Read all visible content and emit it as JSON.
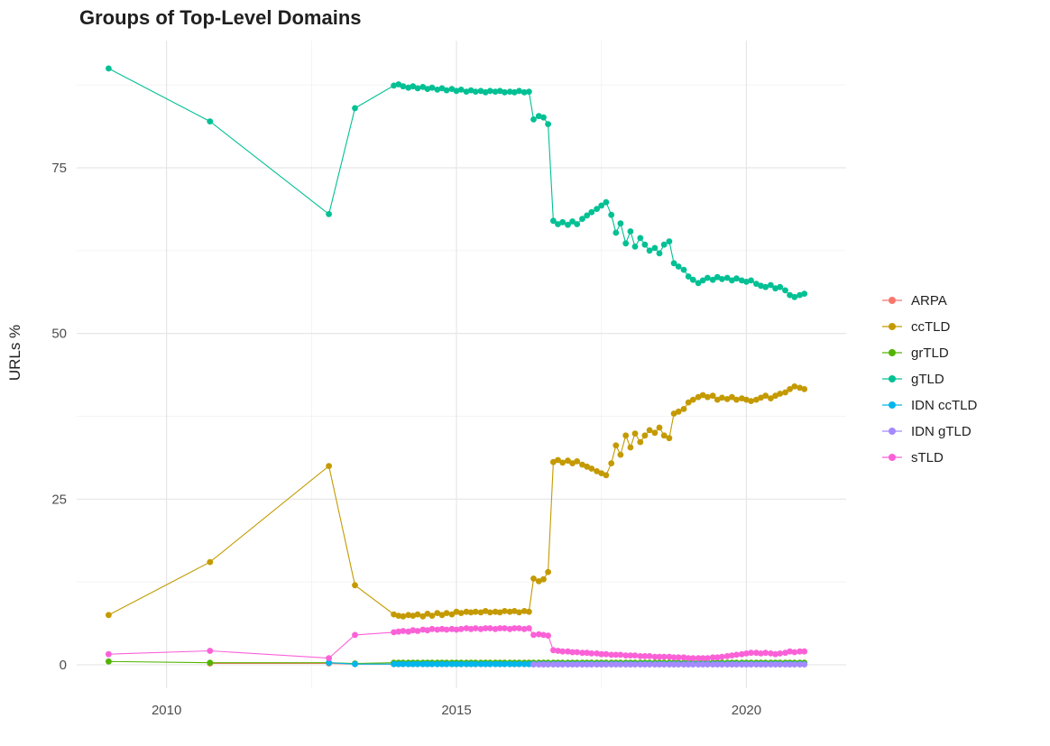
{
  "page": {
    "background": "#ffffff"
  },
  "chart_data": {
    "type": "line",
    "title": "Groups of Top-Level Domains",
    "xlabel": "",
    "ylabel": "URLs %",
    "grid": true,
    "legend_position": "right",
    "xlim": [
      2008.45,
      2021.72
    ],
    "ylim": [
      -3.55,
      94.2
    ],
    "x_ticks": {
      "major": [
        2010,
        2015,
        2020
      ],
      "minor": [
        2012.5,
        2017.5
      ],
      "labels": [
        "2010",
        "2015",
        "2020"
      ]
    },
    "y_ticks": {
      "major": [
        0,
        25,
        50,
        75
      ],
      "minor": [
        12.5,
        37.5,
        62.5,
        87.5
      ],
      "labels": [
        "0",
        "25",
        "50",
        "75"
      ]
    },
    "x": [
      2009,
      2010.75,
      2012.8,
      2013.25,
      2013.92,
      2014.0,
      2014.08,
      2014.17,
      2014.25,
      2014.33,
      2014.42,
      2014.5,
      2014.58,
      2014.67,
      2014.75,
      2014.83,
      2014.92,
      2015.0,
      2015.08,
      2015.17,
      2015.25,
      2015.33,
      2015.42,
      2015.5,
      2015.58,
      2015.67,
      2015.75,
      2015.83,
      2015.92,
      2016.0,
      2016.08,
      2016.17,
      2016.25,
      2016.33,
      2016.42,
      2016.5,
      2016.58,
      2016.67,
      2016.75,
      2016.83,
      2016.92,
      2017.0,
      2017.08,
      2017.17,
      2017.25,
      2017.33,
      2017.42,
      2017.5,
      2017.58,
      2017.67,
      2017.75,
      2017.83,
      2017.92,
      2018.0,
      2018.08,
      2018.17,
      2018.25,
      2018.33,
      2018.42,
      2018.5,
      2018.58,
      2018.67,
      2018.75,
      2018.83,
      2018.92,
      2019.0,
      2019.08,
      2019.17,
      2019.25,
      2019.33,
      2019.42,
      2019.5,
      2019.58,
      2019.67,
      2019.75,
      2019.83,
      2019.92,
      2020.0,
      2020.08,
      2020.17,
      2020.25,
      2020.33,
      2020.42,
      2020.5,
      2020.58,
      2020.67,
      2020.75,
      2020.83,
      2020.92,
      2021.0
    ],
    "series": [
      {
        "name": "ARPA",
        "color": "#F8766D",
        "values": [
          null,
          0.2,
          0.2,
          0.1,
          {
            "r": 86,
            "v": 0.1
          }
        ]
      },
      {
        "name": "ccTLD",
        "color": "#C49A00",
        "values": [
          7.5,
          15.5,
          30.0,
          12.0,
          7.6,
          7.4,
          7.3,
          7.5,
          7.4,
          7.6,
          7.3,
          7.7,
          7.4,
          7.8,
          7.5,
          7.8,
          7.6,
          8.0,
          7.8,
          8.0,
          7.9,
          8.0,
          7.9,
          8.1,
          7.9,
          8.0,
          7.9,
          8.1,
          8.0,
          8.1,
          7.9,
          8.1,
          8.0,
          13.0,
          12.6,
          12.9,
          14.0,
          30.6,
          30.9,
          30.5,
          30.8,
          30.4,
          30.7,
          30.2,
          29.9,
          29.6,
          29.2,
          28.9,
          28.6,
          30.4,
          33.1,
          31.7,
          34.6,
          32.8,
          34.9,
          33.6,
          34.6,
          35.4,
          35.0,
          35.8,
          34.6,
          34.2,
          37.9,
          38.2,
          38.6,
          39.6,
          40.0,
          40.4,
          40.7,
          40.4,
          40.6,
          40.0,
          40.3,
          40.1,
          40.4,
          40.0,
          40.2,
          40.0,
          39.8,
          40.0,
          40.3,
          40.6,
          40.2,
          40.6,
          40.9,
          41.1,
          41.6,
          42.0,
          41.8,
          41.6
        ]
      },
      {
        "name": "grTLD",
        "color": "#53B400",
        "values": [
          0.5,
          0.3,
          0.3,
          0.2,
          {
            "r": 86,
            "v": 0.3
          }
        ]
      },
      {
        "name": "gTLD",
        "color": "#00C094",
        "values": [
          90.0,
          82.0,
          68.0,
          84.0,
          87.4,
          87.6,
          87.3,
          87.1,
          87.3,
          87.0,
          87.2,
          86.9,
          87.1,
          86.8,
          87.0,
          86.7,
          86.9,
          86.6,
          86.8,
          86.5,
          86.7,
          86.5,
          86.6,
          86.4,
          86.6,
          86.5,
          86.6,
          86.4,
          86.5,
          86.4,
          86.6,
          86.4,
          86.5,
          82.3,
          82.8,
          82.6,
          81.6,
          67.0,
          66.5,
          66.8,
          66.4,
          66.9,
          66.5,
          67.3,
          67.8,
          68.3,
          68.8,
          69.3,
          69.8,
          67.9,
          65.2,
          66.6,
          63.6,
          65.4,
          63.1,
          64.4,
          63.4,
          62.5,
          62.9,
          62.1,
          63.4,
          63.9,
          60.6,
          60.1,
          59.6,
          58.6,
          58.1,
          57.6,
          58.0,
          58.4,
          58.1,
          58.5,
          58.2,
          58.4,
          58.0,
          58.3,
          58.0,
          57.8,
          58.0,
          57.5,
          57.2,
          57.0,
          57.3,
          56.8,
          57.0,
          56.5,
          55.8,
          55.5,
          55.8,
          56.0
        ]
      },
      {
        "name": "IDN ccTLD",
        "color": "#00B6EB",
        "values": [
          null,
          null,
          0.3,
          0.1,
          {
            "r": 86,
            "v": 0.1
          }
        ]
      },
      {
        "name": "IDN gTLD",
        "color": "#A58AFF",
        "values": [
          null,
          null,
          null,
          null,
          {
            "r": 29,
            "v": null
          },
          {
            "r": 57,
            "v": 0.05
          }
        ]
      },
      {
        "name": "sTLD",
        "color": "#FB61D7",
        "values": [
          1.6,
          2.1,
          1.0,
          4.5,
          4.9,
          5.0,
          5.1,
          5.0,
          5.2,
          5.1,
          5.3,
          5.2,
          5.4,
          5.3,
          5.4,
          5.3,
          5.4,
          5.3,
          5.4,
          5.5,
          5.4,
          5.5,
          5.4,
          5.5,
          5.5,
          5.4,
          5.5,
          5.5,
          5.4,
          5.5,
          5.5,
          5.4,
          5.5,
          4.5,
          4.6,
          4.5,
          4.4,
          2.2,
          2.1,
          2.0,
          2.0,
          1.9,
          1.9,
          1.8,
          1.8,
          1.7,
          1.7,
          1.6,
          1.6,
          1.5,
          1.5,
          1.5,
          1.4,
          1.4,
          1.4,
          1.3,
          1.3,
          1.3,
          1.2,
          1.2,
          1.2,
          1.2,
          1.1,
          1.1,
          1.1,
          1.0,
          1.0,
          1.0,
          1.0,
          1.0,
          1.1,
          1.1,
          1.2,
          1.3,
          1.4,
          1.5,
          1.6,
          1.7,
          1.8,
          1.8,
          1.7,
          1.8,
          1.7,
          1.6,
          1.7,
          1.8,
          2.0,
          1.9,
          2.0,
          2.0
        ]
      }
    ]
  }
}
